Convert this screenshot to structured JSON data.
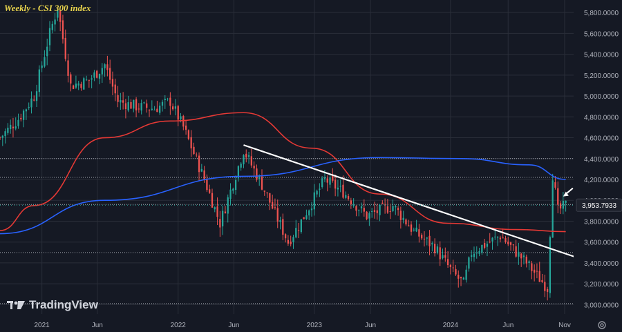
{
  "chart_data": {
    "type": "candlestick",
    "title": "Weekly - CSI 300 index",
    "xlabel": "",
    "ylabel": "",
    "x_ticks": [
      "2021",
      "Jun",
      "2022",
      "Jun",
      "2023",
      "Jun",
      "2024",
      "Jun",
      "Nov"
    ],
    "y_ticks": [
      "5,800.0000",
      "5,600.0000",
      "5,400.0000",
      "5,200.0000",
      "5,000.0000",
      "4,800.0000",
      "4,600.0000",
      "4,400.0000",
      "4,200.0000",
      "4,000.0000",
      "3,800.0000",
      "3,600.0000",
      "3,400.0000",
      "3,200.0000",
      "3,000.0000"
    ],
    "ylim": [
      2910,
      5920
    ],
    "xlim": [
      "2020-09-14",
      "2024-11-25"
    ],
    "last_price_label": "3,953.7933",
    "last_price": 3953.79,
    "colors": {
      "up": "#26a69a",
      "down": "#ef5350",
      "ma_fast": "#e53935",
      "ma_slow": "#2962ff",
      "trendline": "#ffffff",
      "grid": "#2a2e39"
    },
    "price_path": [
      [
        "2020-09-14",
        4600
      ],
      [
        "2020-11-02",
        4780
      ],
      [
        "2020-12-14",
        5000
      ],
      [
        "2021-01-25",
        5600
      ],
      [
        "2021-02-15",
        5850
      ],
      [
        "2021-03-22",
        5100
      ],
      [
        "2021-05-10",
        5150
      ],
      [
        "2021-06-21",
        5300
      ],
      [
        "2021-07-26",
        4950
      ],
      [
        "2021-09-13",
        4900
      ],
      [
        "2021-11-01",
        4880
      ],
      [
        "2021-12-13",
        4950
      ],
      [
        "2022-01-17",
        4700
      ],
      [
        "2022-03-14",
        4200
      ],
      [
        "2022-04-25",
        3780
      ],
      [
        "2022-06-27",
        4480
      ],
      [
        "2022-08-15",
        4150
      ],
      [
        "2022-10-24",
        3600
      ],
      [
        "2022-11-28",
        3800
      ],
      [
        "2023-01-30",
        4200
      ],
      [
        "2023-03-20",
        4080
      ],
      [
        "2023-05-22",
        3850
      ],
      [
        "2023-07-31",
        3950
      ],
      [
        "2023-09-25",
        3700
      ],
      [
        "2023-11-20",
        3550
      ],
      [
        "2024-01-08",
        3300
      ],
      [
        "2024-02-05",
        3200
      ],
      [
        "2024-02-26",
        3500
      ],
      [
        "2024-05-13",
        3660
      ],
      [
        "2024-07-22",
        3400
      ],
      [
        "2024-09-16",
        3160
      ],
      [
        "2024-09-23",
        3700
      ],
      [
        "2024-09-30",
        4250
      ],
      [
        "2024-10-14",
        3900
      ],
      [
        "2024-11-04",
        3954
      ]
    ],
    "series": [
      {
        "name": "",
        "points": [
          [
            "2020-09-14",
            3710
          ],
          [
            "2020-12-14",
            3950
          ],
          [
            "2021-06-21",
            4600
          ],
          [
            "2021-12-13",
            4760
          ],
          [
            "2022-06-27",
            4840
          ],
          [
            "2022-12-26",
            4500
          ],
          [
            "2023-06-26",
            4060
          ],
          [
            "2023-12-25",
            3780
          ],
          [
            "2024-06-24",
            3720
          ],
          [
            "2024-11-04",
            3700
          ]
        ]
      },
      {
        "name": "",
        "points": [
          [
            "2020-09-14",
            3680
          ],
          [
            "2021-06-21",
            4000
          ],
          [
            "2022-06-27",
            4230
          ],
          [
            "2023-06-26",
            4410
          ],
          [
            "2024-01-29",
            4400
          ],
          [
            "2024-07-29",
            4340
          ],
          [
            "2024-11-04",
            4200
          ]
        ]
      }
    ],
    "trendline": [
      [
        "2022-06-27",
        4530
      ],
      [
        "2024-12-23",
        3440
      ]
    ],
    "hlines": [
      4400,
      4220,
      3960,
      3500,
      3010
    ],
    "arrow_at": [
      "2024-10-28",
      4050
    ]
  },
  "branding": {
    "logo_text": "TradingView"
  },
  "toolbar": {
    "settings_icon": "gear-icon"
  }
}
